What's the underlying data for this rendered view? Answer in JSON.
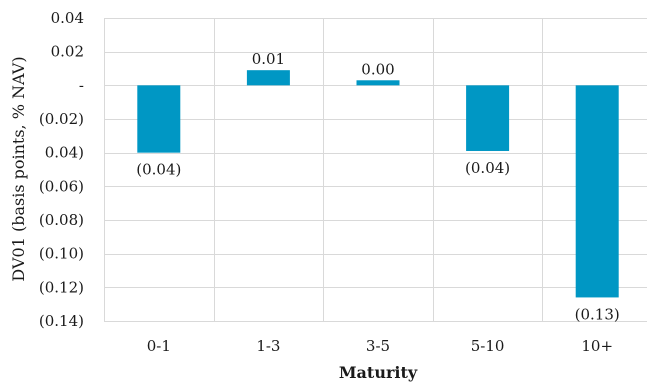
{
  "chart_data": {
    "type": "bar",
    "title": "",
    "xlabel": "Maturity",
    "ylabel": "DV01 (basis points, % NAV)",
    "categories": [
      "0-1",
      "1-3",
      "3-5",
      "5-10",
      "10+"
    ],
    "values": [
      -0.04,
      0.009,
      0.003,
      -0.039,
      -0.126
    ],
    "data_labels": [
      "(0.04)",
      "0.01",
      "0.00",
      "(0.04)",
      "(0.13)"
    ],
    "ylim": [
      -0.14,
      0.04
    ],
    "yticks": [
      0.04,
      0.02,
      0,
      -0.02,
      -0.04,
      -0.06,
      -0.08,
      -0.1,
      -0.12,
      -0.14
    ],
    "ytick_labels": [
      "0.04",
      "0.02",
      "-",
      "(0.02)",
      "0.04)",
      "(0.06)",
      "(0.08)",
      "(0.10)",
      "(0.12)",
      "(0.14)"
    ],
    "grid": true,
    "legend": "none",
    "bar_color": "#0097c4",
    "grid_color": "#d9d9d9"
  }
}
